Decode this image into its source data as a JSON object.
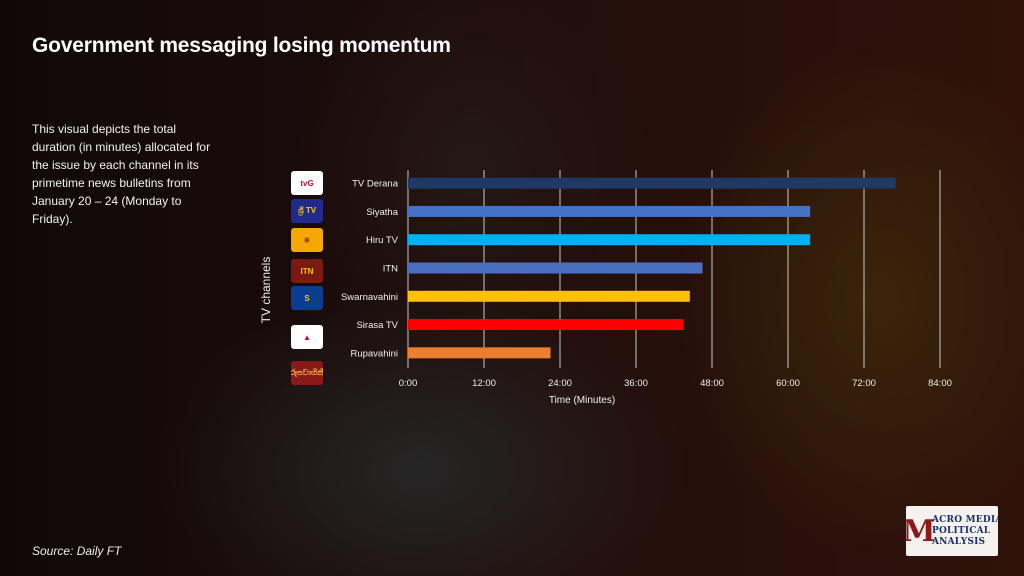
{
  "page": {
    "title": "Government messaging losing momentum",
    "description": "This visual depicts the total duration  (in minutes) allocated for the issue by each channel in its primetime news bulletins from January 20 – 24 (Monday to Friday).",
    "source": "Source: Daily FT",
    "badge": {
      "letter": "M",
      "lines": [
        "ACRO MEDIA",
        "POLITICAL",
        "ANALYSIS"
      ]
    }
  },
  "logos": [
    {
      "text": "tvG",
      "bg": "#ffffff",
      "fg": "#c8102e"
    },
    {
      "text": "ශ්‍රී TV",
      "bg": "#1f2a8a",
      "fg": "#f5c518"
    },
    {
      "text": "☀",
      "bg": "#f4a800",
      "fg": "#8b2a00"
    },
    {
      "text": "ITN",
      "bg": "#7a1a10",
      "fg": "#f5c518"
    },
    {
      "text": "S",
      "bg": "#0a3d8f",
      "fg": "#f5c518"
    },
    {
      "text": "▲",
      "bg": "#ffffff",
      "fg": "#d6001c"
    },
    {
      "text": "රූපවාහිනී",
      "bg": "#8a1a1a",
      "fg": "#f0c040"
    }
  ],
  "chart_data": {
    "type": "bar",
    "orientation": "horizontal",
    "xlabel": "Time (Minutes)",
    "ylabel": "TV channels",
    "xlim": [
      0,
      84
    ],
    "x_ticks": [
      0,
      12,
      24,
      36,
      48,
      60,
      72,
      84
    ],
    "x_tick_labels": [
      "0:00",
      "12:00",
      "24:00",
      "36:00",
      "48:00",
      "60:00",
      "72:00",
      "84:00"
    ],
    "grid": "vertical",
    "categories": [
      "TV Derana",
      "Siyatha",
      "Hiru TV",
      "ITN",
      "Swarnavahini",
      "Sirasa TV",
      "Rupavahini"
    ],
    "values": [
      77,
      63.5,
      63.5,
      46.5,
      44.5,
      43.5,
      22.5
    ],
    "colors": [
      "#1f3864",
      "#4472c4",
      "#00b0f0",
      "#4a6fc0",
      "#ffc000",
      "#ff0000",
      "#ed7d31"
    ]
  }
}
